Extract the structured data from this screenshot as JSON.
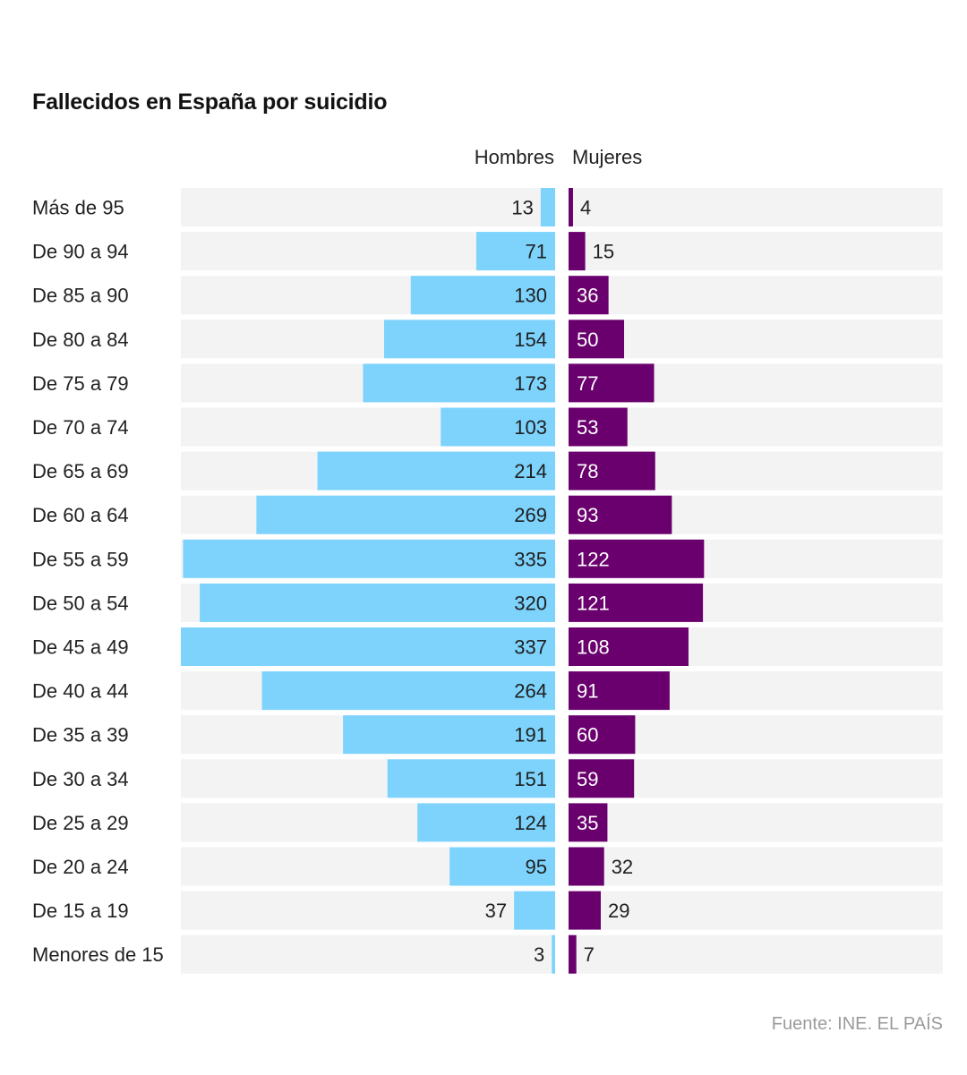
{
  "title": "Fallecidos en España por suicidio",
  "source": "Fuente: INE. EL PAÍS",
  "colors": {
    "men": "#7dd3fc",
    "women": "#6a006e",
    "row_bg": "#f3f3f4",
    "text_dark": "#1f1f1f",
    "text_light": "#ffffff",
    "source": "#9b9b9b"
  },
  "chart_data": {
    "type": "bar",
    "orientation": "horizontal-diverging",
    "title": "Fallecidos en España por suicidio",
    "categories": [
      "Más de 95",
      "De 90 a 94",
      "De 85 a 90",
      "De 80 a 84",
      "De 75 a 79",
      "De 70 a 74",
      "De 65 a 69",
      "De 60 a 64",
      "De 55 a 59",
      "De 50 a 54",
      "De 45 a 49",
      "De 40 a 44",
      "De 35 a 39",
      "De 30 a 34",
      "De 25 a 29",
      "De 20 a 24",
      "De 15 a 19",
      "Menores de 15"
    ],
    "series": [
      {
        "name": "Hombres",
        "values": [
          13,
          71,
          130,
          154,
          173,
          103,
          214,
          269,
          335,
          320,
          337,
          264,
          191,
          151,
          124,
          95,
          37,
          3
        ]
      },
      {
        "name": "Mujeres",
        "values": [
          4,
          15,
          36,
          50,
          77,
          53,
          78,
          93,
          122,
          121,
          108,
          91,
          60,
          59,
          35,
          32,
          29,
          7
        ]
      }
    ],
    "xlim": [
      0,
      337
    ],
    "legend": "top-center",
    "grid": false
  }
}
